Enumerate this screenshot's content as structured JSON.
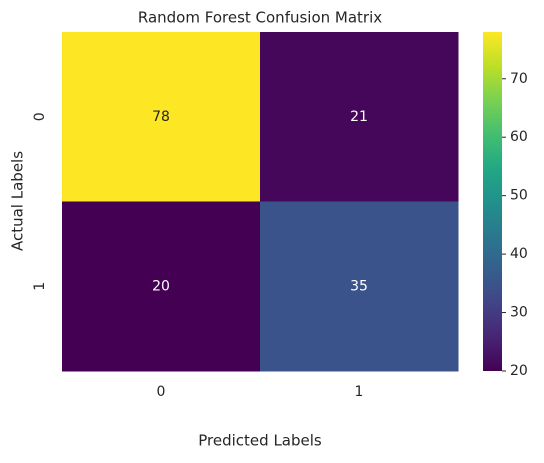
{
  "chart_data": {
    "type": "heatmap",
    "title": "Random Forest Confusion Matrix",
    "xlabel": "Predicted Labels",
    "ylabel": "Actual Labels",
    "x_categories": [
      "0",
      "1"
    ],
    "y_categories": [
      "0",
      "1"
    ],
    "values": [
      [
        78,
        21
      ],
      [
        20,
        35
      ]
    ],
    "colormap": "viridis",
    "clim": [
      20,
      78
    ],
    "cticks": [
      20,
      30,
      40,
      50,
      60,
      70
    ]
  }
}
